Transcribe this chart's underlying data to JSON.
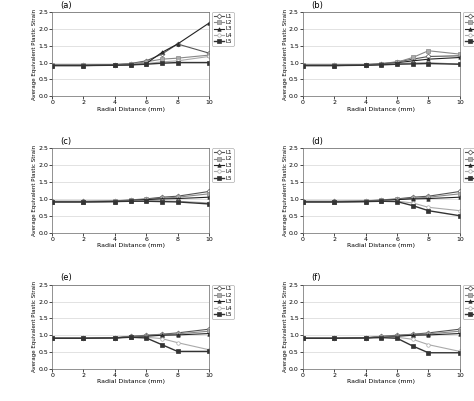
{
  "x": [
    0,
    2,
    4,
    5,
    6,
    7,
    8,
    10
  ],
  "subplots": [
    {
      "label": "(a)",
      "lines": {
        "L1": [
          0.93,
          0.93,
          0.94,
          0.97,
          1.05,
          1.25,
          1.55,
          1.28
        ],
        "L2": [
          0.92,
          0.92,
          0.93,
          0.96,
          1.02,
          1.1,
          1.13,
          1.22
        ],
        "L3": [
          0.91,
          0.91,
          0.92,
          0.93,
          0.97,
          1.3,
          1.55,
          2.17
        ],
        "L4": [
          0.91,
          0.91,
          0.92,
          0.94,
          0.97,
          1.02,
          1.05,
          1.18
        ],
        "L5": [
          0.91,
          0.91,
          0.92,
          0.93,
          0.95,
          0.98,
          1.0,
          1.0
        ]
      }
    },
    {
      "label": "(b)",
      "lines": {
        "L1": [
          0.93,
          0.93,
          0.94,
          0.97,
          1.02,
          1.1,
          1.18,
          1.2
        ],
        "L2": [
          0.92,
          0.92,
          0.93,
          0.96,
          1.01,
          1.15,
          1.35,
          1.25
        ],
        "L3": [
          0.91,
          0.91,
          0.92,
          0.95,
          0.99,
          1.05,
          1.1,
          1.15
        ],
        "L4": [
          0.91,
          0.91,
          0.92,
          0.94,
          0.97,
          0.99,
          1.0,
          0.95
        ],
        "L5": [
          0.91,
          0.91,
          0.92,
          0.93,
          0.95,
          0.96,
          0.97,
          0.95
        ]
      }
    },
    {
      "label": "(c)",
      "lines": {
        "L1": [
          0.93,
          0.93,
          0.94,
          0.97,
          1.0,
          1.05,
          1.08,
          1.22
        ],
        "L2": [
          0.92,
          0.92,
          0.93,
          0.96,
          0.99,
          1.02,
          1.05,
          1.15
        ],
        "L3": [
          0.91,
          0.91,
          0.92,
          0.95,
          0.98,
          1.0,
          1.01,
          1.05
        ],
        "L4": [
          0.91,
          0.91,
          0.92,
          0.94,
          0.95,
          0.94,
          0.93,
          0.88
        ],
        "L5": [
          0.91,
          0.91,
          0.92,
          0.93,
          0.93,
          0.92,
          0.91,
          0.85
        ]
      }
    },
    {
      "label": "(d)",
      "lines": {
        "L1": [
          0.93,
          0.93,
          0.94,
          0.97,
          1.0,
          1.05,
          1.08,
          1.22
        ],
        "L2": [
          0.92,
          0.92,
          0.93,
          0.96,
          0.99,
          1.02,
          1.05,
          1.15
        ],
        "L3": [
          0.91,
          0.91,
          0.92,
          0.95,
          0.98,
          1.0,
          1.01,
          1.05
        ],
        "L4": [
          0.91,
          0.91,
          0.92,
          0.94,
          0.93,
          0.88,
          0.75,
          0.65
        ],
        "L5": [
          0.91,
          0.91,
          0.92,
          0.93,
          0.92,
          0.8,
          0.65,
          0.5
        ]
      }
    },
    {
      "label": "(e)",
      "lines": {
        "L1": [
          0.91,
          0.91,
          0.93,
          0.97,
          1.0,
          1.03,
          1.07,
          1.18
        ],
        "L2": [
          0.91,
          0.91,
          0.92,
          0.96,
          0.99,
          1.02,
          1.04,
          1.12
        ],
        "L3": [
          0.91,
          0.91,
          0.92,
          0.95,
          0.97,
          1.0,
          1.01,
          1.05
        ],
        "L4": [
          0.91,
          0.91,
          0.92,
          0.95,
          0.94,
          0.9,
          0.78,
          0.57
        ],
        "L5": [
          0.91,
          0.91,
          0.92,
          0.94,
          0.92,
          0.72,
          0.52,
          0.52
        ]
      }
    },
    {
      "label": "(f)",
      "lines": {
        "L1": [
          0.91,
          0.91,
          0.93,
          0.97,
          1.0,
          1.03,
          1.07,
          1.18
        ],
        "L2": [
          0.91,
          0.91,
          0.92,
          0.96,
          0.99,
          1.02,
          1.04,
          1.12
        ],
        "L3": [
          0.91,
          0.91,
          0.92,
          0.95,
          0.97,
          1.0,
          1.01,
          1.05
        ],
        "L4": [
          0.91,
          0.91,
          0.92,
          0.95,
          0.94,
          0.88,
          0.72,
          0.52
        ],
        "L5": [
          0.91,
          0.91,
          0.92,
          0.93,
          0.91,
          0.68,
          0.48,
          0.48
        ]
      }
    }
  ],
  "line_styles": {
    "L1": {
      "color": "#555555",
      "marker": "D",
      "markersize": 2.5,
      "linewidth": 0.8,
      "mfc": "white",
      "mec": "#555555"
    },
    "L2": {
      "color": "#888888",
      "marker": "s",
      "markersize": 2.5,
      "linewidth": 0.8,
      "mfc": "#aaaaaa",
      "mec": "#888888"
    },
    "L3": {
      "color": "#222222",
      "marker": "^",
      "markersize": 2.5,
      "linewidth": 0.8,
      "mfc": "#333333",
      "mec": "#222222"
    },
    "L4": {
      "color": "#aaaaaa",
      "marker": "o",
      "markersize": 2.5,
      "linewidth": 0.8,
      "mfc": "white",
      "mec": "#aaaaaa"
    },
    "L5": {
      "color": "#333333",
      "marker": "s",
      "markersize": 2.5,
      "linewidth": 1.0,
      "mfc": "#333333",
      "mec": "#333333"
    }
  },
  "xlabel": "Radial Distance (mm)",
  "ylabel": "Average Equivalent Plastic Strain",
  "ylim": [
    0.0,
    2.5
  ],
  "yticks": [
    0.0,
    0.5,
    1.0,
    1.5,
    2.0,
    2.5
  ],
  "xlim": [
    0,
    10
  ],
  "xticks": [
    0,
    2,
    4,
    6,
    8,
    10
  ],
  "line_names": [
    "L1",
    "L2",
    "L3",
    "L4",
    "L5"
  ]
}
